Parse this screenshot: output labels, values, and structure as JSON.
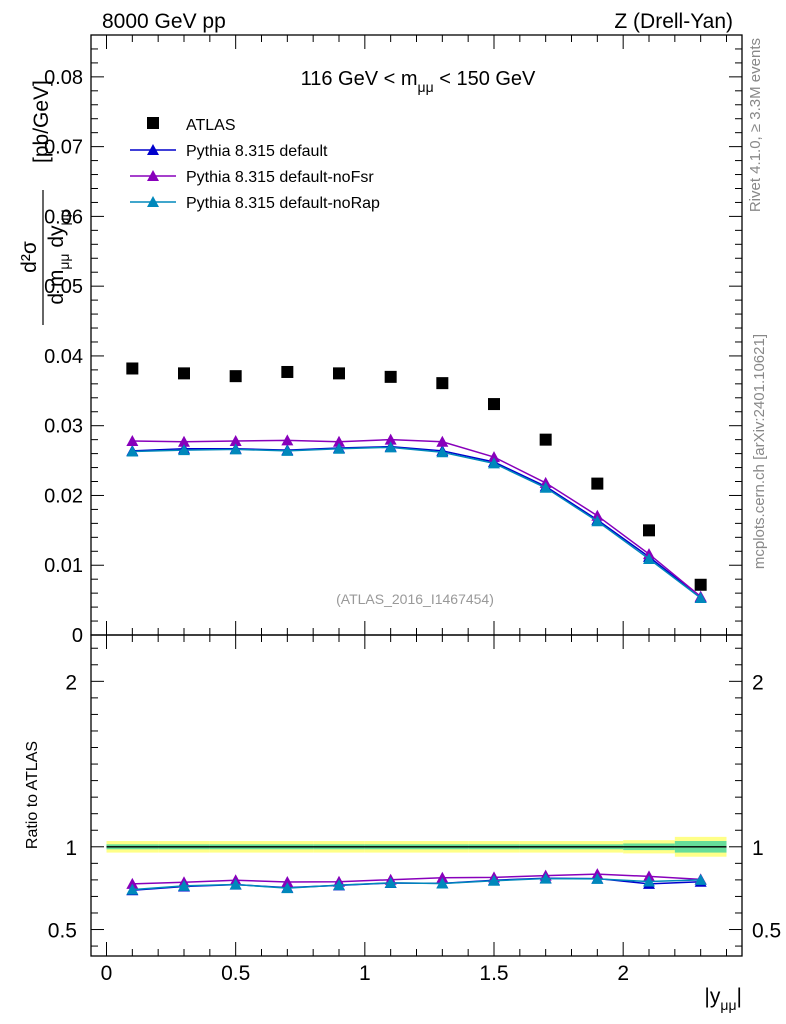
{
  "header": {
    "left": "8000 GeV pp",
    "right": "Z (Drell-Yan)"
  },
  "side_labels": {
    "rivet": "Rivet 4.1.0, ≥ 3.3M events",
    "site": "mcplots.cern.ch [arXiv:2401.10621]"
  },
  "colors": {
    "data": "#000000",
    "default": "#0000cc",
    "noFsr": "#8800bb",
    "noRap": "#0088bb",
    "band_outer": "#ffff88",
    "band_inner": "#66dd99"
  },
  "chart_data": [
    {
      "type": "scatter",
      "title": "116 GeV < mμμ < 150 GeV",
      "title_parts": {
        "pre": "116 GeV < m",
        "sub": "μμ",
        "post": " < 150 GeV"
      },
      "ylabel_parts": {
        "num": "d²σ",
        "den_d": "d m",
        "den_sub1": "μμ",
        "den_dy": " dy",
        "den_sub2": "μμ",
        "unit": "[pb/GeV]"
      },
      "analysis_tag": "(ATLAS_2016_I1467454)",
      "xlim": [
        -0.06,
        2.46
      ],
      "ylim": [
        0,
        0.086
      ],
      "yticks": [
        0,
        0.01,
        0.02,
        0.03,
        0.04,
        0.05,
        0.06,
        0.07,
        0.08
      ],
      "ytick_labels": [
        "0",
        "0.01",
        "0.02",
        "0.03",
        "0.04",
        "0.05",
        "0.06",
        "0.07",
        "0.08"
      ],
      "x": [
        0.1,
        0.3,
        0.5,
        0.7,
        0.9,
        1.1,
        1.3,
        1.5,
        1.7,
        1.9,
        2.1,
        2.3
      ],
      "legend": [
        "ATLAS",
        "Pythia 8.315 default",
        "Pythia 8.315 default-noFsr",
        "Pythia 8.315 default-noRap"
      ],
      "series": [
        {
          "name": "ATLAS",
          "marker": "square",
          "values": [
            0.0382,
            0.0375,
            0.0371,
            0.0377,
            0.0375,
            0.037,
            0.0361,
            0.0331,
            0.028,
            0.0217,
            0.015,
            0.0072
          ]
        },
        {
          "name": "Pythia 8.315 default",
          "marker": "triangle",
          "values": [
            0.0264,
            0.0267,
            0.0267,
            0.0265,
            0.0268,
            0.027,
            0.0264,
            0.0248,
            0.0213,
            0.0165,
            0.0112,
            0.0054
          ]
        },
        {
          "name": "Pythia 8.315 default-noFsr",
          "marker": "triangle",
          "values": [
            0.0278,
            0.0277,
            0.0278,
            0.0279,
            0.0277,
            0.028,
            0.0277,
            0.0255,
            0.0218,
            0.0171,
            0.0116,
            0.0055
          ]
        },
        {
          "name": "Pythia 8.315 default-noRap",
          "marker": "triangle",
          "values": [
            0.0263,
            0.0265,
            0.0266,
            0.0264,
            0.0267,
            0.0269,
            0.0262,
            0.0246,
            0.0211,
            0.0163,
            0.0109,
            0.0053
          ]
        }
      ]
    },
    {
      "type": "line",
      "ylabel": "Ratio to ATLAS",
      "xlabel_parts": {
        "pre": "|y",
        "sub": "μμ",
        "post": "|"
      },
      "xlim": [
        -0.06,
        2.46
      ],
      "ylim": [
        0.34,
        2.28
      ],
      "xticks": [
        0,
        0.5,
        1,
        1.5,
        2
      ],
      "xtick_labels": [
        "0",
        "0.5",
        "1",
        "1.5",
        "2"
      ],
      "yticks": [
        0.5,
        1,
        2
      ],
      "ytick_labels": [
        "0.5",
        "1",
        "2"
      ],
      "x": [
        0.1,
        0.3,
        0.5,
        0.7,
        0.9,
        1.1,
        1.3,
        1.5,
        1.7,
        1.9,
        2.1,
        2.3
      ],
      "band_edges": [
        0,
        0.2,
        0.4,
        0.6,
        0.8,
        1.0,
        1.2,
        1.4,
        1.6,
        1.8,
        2.0,
        2.2,
        2.4
      ],
      "band_outer": [
        0.035,
        0.035,
        0.035,
        0.035,
        0.035,
        0.035,
        0.035,
        0.035,
        0.035,
        0.035,
        0.04,
        0.06
      ],
      "band_inner": [
        0.015,
        0.015,
        0.015,
        0.015,
        0.015,
        0.015,
        0.015,
        0.015,
        0.015,
        0.015,
        0.02,
        0.035
      ],
      "series": [
        {
          "name": "Pythia 8.315 default",
          "values": [
            0.737,
            0.76,
            0.771,
            0.753,
            0.767,
            0.781,
            0.779,
            0.798,
            0.81,
            0.808,
            0.776,
            0.789
          ]
        },
        {
          "name": "Pythia 8.315 default-noFsr",
          "values": [
            0.776,
            0.786,
            0.798,
            0.787,
            0.789,
            0.801,
            0.813,
            0.815,
            0.826,
            0.835,
            0.821,
            0.803
          ]
        },
        {
          "name": "Pythia 8.315 default-noRap",
          "values": [
            0.741,
            0.764,
            0.772,
            0.75,
            0.768,
            0.782,
            0.778,
            0.795,
            0.808,
            0.806,
            0.79,
            0.8
          ]
        }
      ]
    }
  ]
}
